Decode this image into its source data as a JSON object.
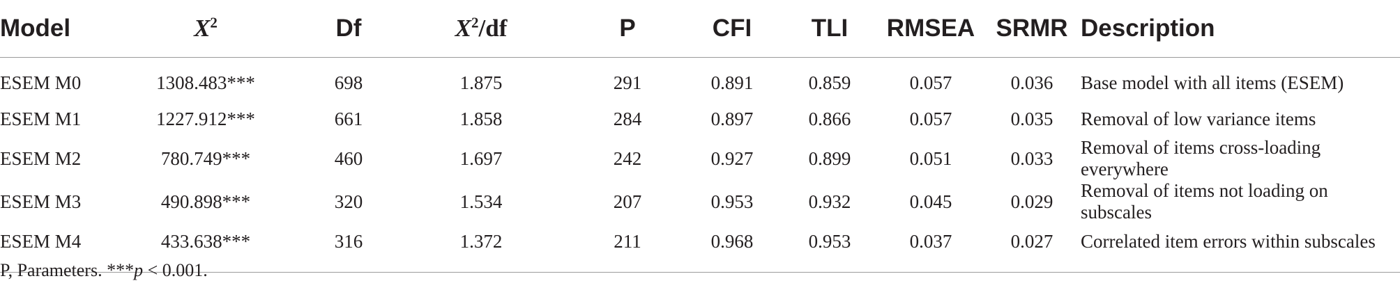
{
  "table": {
    "headers": [
      {
        "key": "model",
        "text": "Model"
      },
      {
        "key": "x2",
        "base": "X",
        "sup": "2"
      },
      {
        "key": "df",
        "text": "Df"
      },
      {
        "key": "x2df",
        "base": "X",
        "sup": "2",
        "suffix": "/df"
      },
      {
        "key": "p",
        "text": "P"
      },
      {
        "key": "cfi",
        "text": "CFI"
      },
      {
        "key": "tli",
        "text": "TLI"
      },
      {
        "key": "rmsea",
        "text": "RMSEA"
      },
      {
        "key": "srmr",
        "text": "SRMR"
      },
      {
        "key": "description",
        "text": "Description"
      }
    ],
    "rows": [
      [
        "ESEM M0",
        "1308.483***",
        "698",
        "1.875",
        "291",
        "0.891",
        "0.859",
        "0.057",
        "0.036",
        "Base model with all items (ESEM)"
      ],
      [
        "ESEM M1",
        "1227.912***",
        "661",
        "1.858",
        "284",
        "0.897",
        "0.866",
        "0.057",
        "0.035",
        "Removal of low variance items"
      ],
      [
        "ESEM M2",
        "780.749***",
        "460",
        "1.697",
        "242",
        "0.927",
        "0.899",
        "0.051",
        "0.033",
        "Removal of items cross-loading everywhere"
      ],
      [
        "ESEM M3",
        "490.898***",
        "320",
        "1.534",
        "207",
        "0.953",
        "0.932",
        "0.045",
        "0.029",
        "Removal of items not loading on subscales"
      ],
      [
        "ESEM M4",
        "433.638***",
        "316",
        "1.372",
        "211",
        "0.968",
        "0.953",
        "0.037",
        "0.027",
        "Correlated item errors within subscales"
      ]
    ]
  },
  "footnote": {
    "prefix": "P, Parameters. ***",
    "p_symbol": "p",
    "suffix": " < 0.001."
  }
}
